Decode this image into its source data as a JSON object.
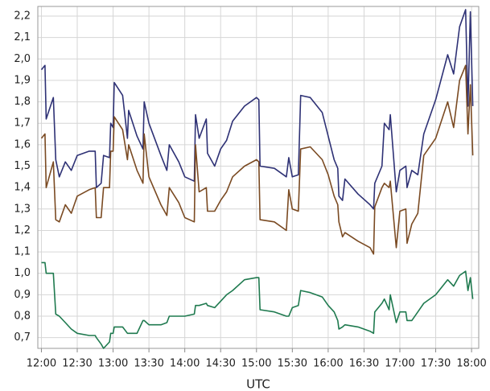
{
  "chart_data": {
    "type": "line",
    "xlabel": "UTC",
    "x": [
      "12:00",
      "12:03",
      "12:04",
      "12:10",
      "12:12",
      "12:15",
      "12:20",
      "12:25",
      "12:30",
      "12:40",
      "12:45",
      "12:46",
      "12:50",
      "12:52",
      "12:57",
      "12:58",
      "13:00",
      "13:01",
      "13:08",
      "13:12",
      "13:13",
      "13:20",
      "13:25",
      "13:26",
      "13:30",
      "13:40",
      "13:45",
      "13:47",
      "13:55",
      "14:00",
      "14:08",
      "14:09",
      "14:12",
      "14:18",
      "14:19",
      "14:25",
      "14:30",
      "14:35",
      "14:40",
      "14:50",
      "15:00",
      "15:02",
      "15:03",
      "15:15",
      "15:25",
      "15:27",
      "15:30",
      "15:35",
      "15:37",
      "15:45",
      "15:55",
      "16:00",
      "16:05",
      "16:08",
      "16:09",
      "16:12",
      "16:14",
      "16:25",
      "16:35",
      "16:38",
      "16:39",
      "16:45",
      "16:47",
      "16:51",
      "16:52",
      "16:57",
      "17:00",
      "17:05",
      "17:06",
      "17:10",
      "17:15",
      "17:20",
      "17:30",
      "17:40",
      "17:45",
      "17:50",
      "17:55",
      "17:57",
      "17:59",
      "18:01"
    ],
    "series": [
      {
        "color": "#2e3175",
        "values": [
          1.95,
          1.97,
          1.72,
          1.82,
          1.53,
          1.45,
          1.52,
          1.48,
          1.55,
          1.57,
          1.57,
          1.4,
          1.42,
          1.55,
          1.54,
          1.7,
          1.68,
          1.89,
          1.83,
          1.63,
          1.76,
          1.64,
          1.58,
          1.8,
          1.7,
          1.55,
          1.48,
          1.6,
          1.52,
          1.45,
          1.43,
          1.74,
          1.63,
          1.72,
          1.56,
          1.5,
          1.58,
          1.62,
          1.71,
          1.78,
          1.82,
          1.81,
          1.5,
          1.49,
          1.45,
          1.54,
          1.45,
          1.46,
          1.83,
          1.82,
          1.75,
          1.64,
          1.53,
          1.49,
          1.36,
          1.34,
          1.44,
          1.37,
          1.32,
          1.3,
          1.42,
          1.5,
          1.7,
          1.67,
          1.74,
          1.38,
          1.48,
          1.5,
          1.4,
          1.48,
          1.46,
          1.65,
          1.81,
          2.02,
          1.93,
          2.15,
          2.23,
          1.78,
          2.22,
          1.78
        ]
      },
      {
        "color": "#7a4a22",
        "values": [
          1.63,
          1.65,
          1.4,
          1.52,
          1.25,
          1.24,
          1.32,
          1.28,
          1.36,
          1.39,
          1.4,
          1.26,
          1.26,
          1.4,
          1.4,
          1.57,
          1.57,
          1.73,
          1.67,
          1.53,
          1.6,
          1.48,
          1.42,
          1.65,
          1.45,
          1.32,
          1.27,
          1.4,
          1.33,
          1.26,
          1.24,
          1.6,
          1.38,
          1.4,
          1.29,
          1.29,
          1.34,
          1.38,
          1.45,
          1.5,
          1.53,
          1.52,
          1.25,
          1.24,
          1.2,
          1.39,
          1.3,
          1.29,
          1.58,
          1.59,
          1.53,
          1.46,
          1.36,
          1.32,
          1.24,
          1.17,
          1.19,
          1.15,
          1.12,
          1.09,
          1.31,
          1.4,
          1.42,
          1.4,
          1.43,
          1.12,
          1.29,
          1.3,
          1.14,
          1.23,
          1.28,
          1.55,
          1.63,
          1.8,
          1.68,
          1.9,
          1.97,
          1.65,
          1.88,
          1.55
        ]
      },
      {
        "color": "#1f7a4f",
        "values": [
          1.05,
          1.05,
          1.0,
          1.0,
          0.81,
          0.8,
          0.77,
          0.74,
          0.72,
          0.71,
          0.71,
          0.7,
          0.67,
          0.65,
          0.68,
          0.72,
          0.72,
          0.75,
          0.75,
          0.72,
          0.72,
          0.72,
          0.78,
          0.78,
          0.76,
          0.76,
          0.77,
          0.8,
          0.8,
          0.8,
          0.81,
          0.85,
          0.85,
          0.86,
          0.85,
          0.84,
          0.87,
          0.9,
          0.92,
          0.97,
          0.98,
          0.98,
          0.83,
          0.82,
          0.8,
          0.8,
          0.84,
          0.85,
          0.92,
          0.91,
          0.89,
          0.85,
          0.82,
          0.78,
          0.74,
          0.75,
          0.76,
          0.75,
          0.73,
          0.72,
          0.82,
          0.86,
          0.88,
          0.83,
          0.9,
          0.77,
          0.82,
          0.82,
          0.78,
          0.78,
          0.82,
          0.86,
          0.9,
          0.97,
          0.94,
          0.99,
          1.01,
          0.92,
          0.98,
          0.88
        ]
      }
    ],
    "xlim": [
      "11:57",
      "18:06"
    ],
    "xticks": [
      "12:00",
      "12:30",
      "13:00",
      "13:30",
      "14:00",
      "14:30",
      "15:00",
      "15:30",
      "16:00",
      "16:30",
      "17:00",
      "17:30",
      "18:00"
    ],
    "ylim": [
      0.65,
      2.245
    ],
    "yticks": [
      {
        "value": 0.7,
        "label": "0,7"
      },
      {
        "value": 0.8,
        "label": "0,8"
      },
      {
        "value": 0.9,
        "label": "0,9"
      },
      {
        "value": 1.0,
        "label": "1,0"
      },
      {
        "value": 1.1,
        "label": "1,1"
      },
      {
        "value": 1.2,
        "label": "1,2"
      },
      {
        "value": 1.3,
        "label": "1,3"
      },
      {
        "value": 1.4,
        "label": "1,4"
      },
      {
        "value": 1.5,
        "label": "1,5"
      },
      {
        "value": 1.6,
        "label": "1,6"
      },
      {
        "value": 1.7,
        "label": "1,7"
      },
      {
        "value": 1.8,
        "label": "1,8"
      },
      {
        "value": 1.9,
        "label": "1,9"
      },
      {
        "value": 2.0,
        "label": "2,0"
      },
      {
        "value": 2.1,
        "label": "2,1"
      },
      {
        "value": 2.2,
        "label": "2,2"
      }
    ],
    "grid": true
  }
}
